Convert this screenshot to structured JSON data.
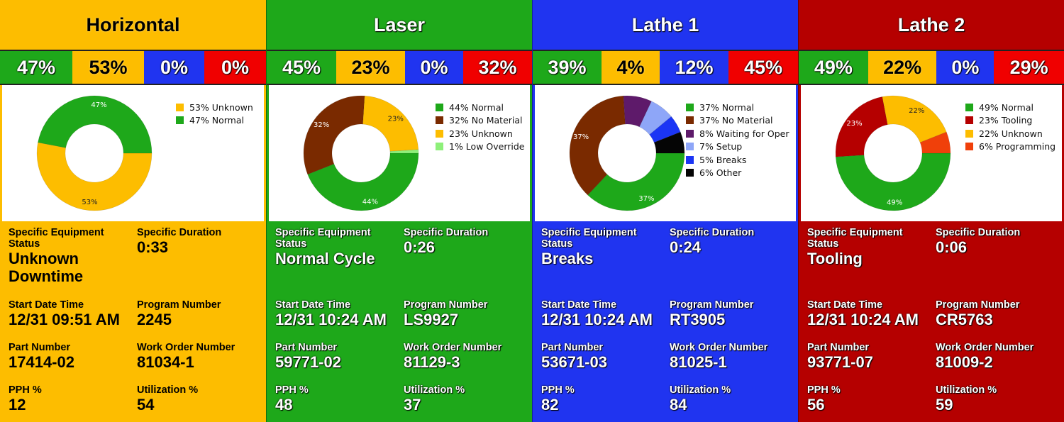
{
  "colors": {
    "green": "#1EA81A",
    "yellow": "#FDBD00",
    "blue": "#2034F0",
    "red": "#F00000",
    "dark_red": "#B50000",
    "brown": "#7A2A00",
    "purple": "#5E1A6A",
    "light_blue": "#8EA6F8",
    "breaks_blue": "#1B35F5",
    "black": "#050505",
    "light_green": "#8EF07A",
    "orange_red": "#F0400A"
  },
  "labels": {
    "status": "Specific Equipment Status",
    "duration": "Specific Duration",
    "start": "Start Date Time",
    "program": "Program Number",
    "part": "Part Number",
    "work_order": "Work Order Number",
    "pph": "PPH %",
    "utilization": "Utilization %"
  },
  "panels": [
    {
      "name": "Horizontal",
      "bg": "#FDBD00",
      "stats": [
        "47%",
        "53%",
        "0%",
        "0%"
      ],
      "stat_widths": [
        102,
        101,
        85,
        85
      ],
      "status": "Unknown Downtime",
      "duration": "0:33",
      "start": "12/31 09:51 AM",
      "program": "2245",
      "part": "17414-02",
      "work_order": "81034-1",
      "pph": "12",
      "utilization": "54",
      "legend": [
        "53% Unknown",
        "47% Normal"
      ]
    },
    {
      "name": "Laser",
      "bg": "#1EA81A",
      "stats": [
        "45%",
        "23%",
        "0%",
        "32%"
      ],
      "stat_widths": [
        98,
        97,
        82,
        98
      ],
      "status": "Normal Cycle",
      "duration": "0:26",
      "start": "12/31 10:24 AM",
      "program": "LS9927",
      "part": "59771-02",
      "work_order": "81129-3",
      "pph": "48",
      "utilization": "37",
      "legend": [
        "44% Normal",
        "32% No Material",
        "23% Unknown",
        "1% Low Override"
      ]
    },
    {
      "name": "Lathe 1",
      "bg": "#2034F0",
      "stats": [
        "39%",
        "4%",
        "12%",
        "45%"
      ],
      "stat_widths": [
        97,
        82,
        97,
        99
      ],
      "status": "Breaks",
      "duration": "0:24",
      "start": "12/31 10:24 AM",
      "program": "RT3905",
      "part": "53671-03",
      "work_order": "81025-1",
      "pph": "82",
      "utilization": "84",
      "legend": [
        "37% Normal",
        "37% No Material",
        "8% Waiting for Oper",
        "7% Setup",
        "5% Breaks",
        "6% Other"
      ]
    },
    {
      "name": "Lathe 2",
      "bg": "#B50000",
      "stats": [
        "49%",
        "22%",
        "0%",
        "29%"
      ],
      "stat_widths": [
        98,
        97,
        81,
        99
      ],
      "status": "Tooling",
      "duration": "0:06",
      "start": "12/31 10:24 AM",
      "program": "CR5763",
      "part": "93771-07",
      "work_order": "81009-2",
      "pph": "56",
      "utilization": "59",
      "legend": [
        "49% Normal",
        "23% Tooling",
        "22% Unknown",
        "6% Programming"
      ]
    }
  ],
  "chart_data": [
    {
      "type": "pie",
      "title": "Horizontal",
      "categories": [
        "Unknown",
        "Normal"
      ],
      "values": [
        53,
        47
      ],
      "colors": [
        "#FDBD00",
        "#1EA81A"
      ],
      "slice_labels": [
        "53%",
        "47%"
      ],
      "legend_position": "right"
    },
    {
      "type": "pie",
      "title": "Laser",
      "categories": [
        "Normal",
        "No Material",
        "Unknown",
        "Low Override"
      ],
      "values": [
        44,
        32,
        23,
        1
      ],
      "colors": [
        "#1EA81A",
        "#7A2A00",
        "#FDBD00",
        "#8EF07A"
      ],
      "slice_labels": [
        "44%",
        "32%",
        "23%",
        ""
      ],
      "legend_position": "right"
    },
    {
      "type": "pie",
      "title": "Lathe 1",
      "categories": [
        "Normal",
        "No Material",
        "Waiting for Oper",
        "Setup",
        "Breaks",
        "Other"
      ],
      "values": [
        37,
        37,
        8,
        7,
        5,
        6
      ],
      "colors": [
        "#1EA81A",
        "#7A2A00",
        "#5E1A6A",
        "#8EA6F8",
        "#1B35F5",
        "#050505"
      ],
      "slice_labels": [
        "37%",
        "37%",
        "",
        "",
        "",
        ""
      ],
      "legend_position": "right"
    },
    {
      "type": "pie",
      "title": "Lathe 2",
      "categories": [
        "Normal",
        "Tooling",
        "Unknown",
        "Programming"
      ],
      "values": [
        49,
        23,
        22,
        6
      ],
      "colors": [
        "#1EA81A",
        "#B50000",
        "#FDBD00",
        "#F0400A"
      ],
      "slice_labels": [
        "49%",
        "23%",
        "22%",
        ""
      ],
      "legend_position": "right"
    }
  ]
}
